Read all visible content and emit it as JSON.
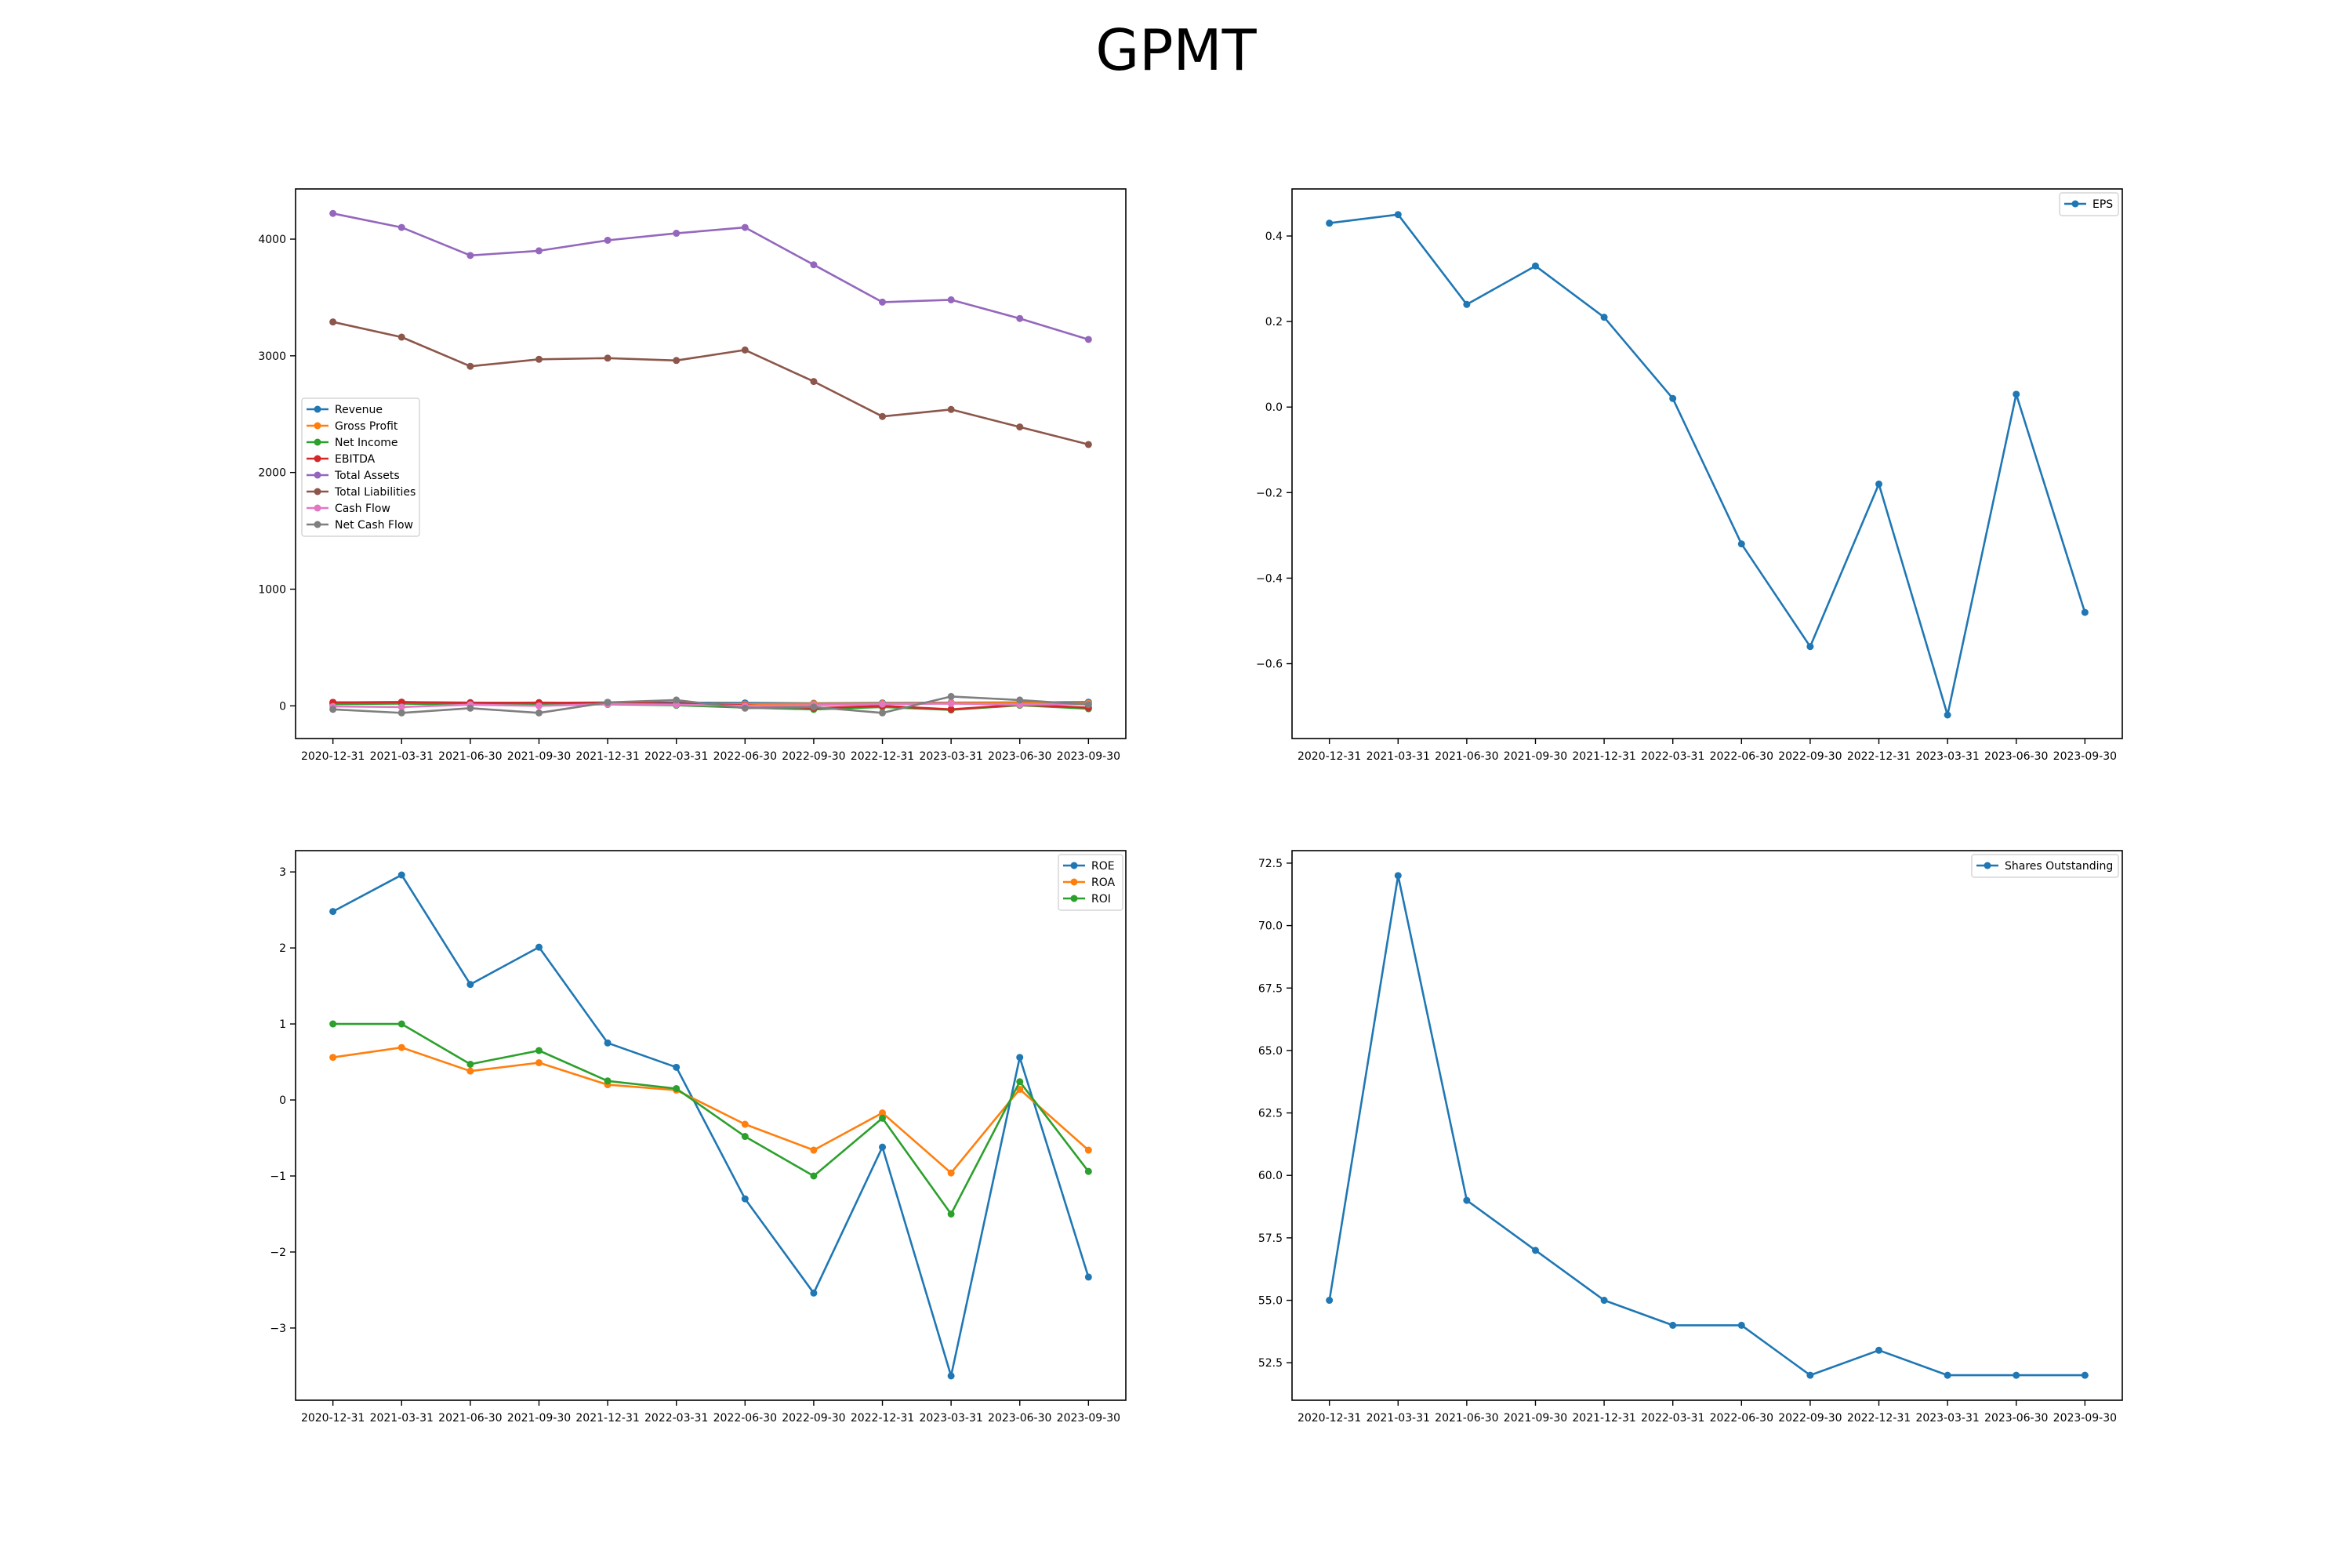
{
  "figure": {
    "title": "GPMT"
  },
  "chart_data": [
    {
      "type": "line",
      "title": "",
      "xlabel": "",
      "ylabel": "",
      "categories": [
        "2020-12-31",
        "2021-03-31",
        "2021-06-30",
        "2021-09-30",
        "2021-12-31",
        "2022-03-31",
        "2022-06-30",
        "2022-09-30",
        "2022-12-31",
        "2023-03-31",
        "2023-06-30",
        "2023-09-30"
      ],
      "ylim": [
        -280,
        4430
      ],
      "yticks": [
        0,
        1000,
        2000,
        3000,
        4000
      ],
      "ytick_labels": [
        "0",
        "1000",
        "2000",
        "3000",
        "4000"
      ],
      "grid": false,
      "legend_position": "center-left",
      "series": [
        {
          "name": "Revenue",
          "color": "#1f77b4",
          "values": [
            30,
            32,
            28,
            25,
            30,
            28,
            25,
            22,
            25,
            28,
            30,
            32
          ]
        },
        {
          "name": "Gross Profit",
          "color": "#ff7f0e",
          "values": [
            25,
            28,
            22,
            20,
            25,
            20,
            15,
            18,
            20,
            25,
            25,
            22
          ]
        },
        {
          "name": "Net Income",
          "color": "#2ca02c",
          "values": [
            15,
            20,
            10,
            15,
            12,
            5,
            -15,
            -30,
            -10,
            -35,
            5,
            -25
          ]
        },
        {
          "name": "EBITDA",
          "color": "#d62728",
          "values": [
            30,
            32,
            25,
            28,
            25,
            20,
            5,
            -20,
            0,
            -30,
            10,
            -15
          ]
        },
        {
          "name": "Total Assets",
          "color": "#9467bd",
          "values": [
            4220,
            4100,
            3860,
            3900,
            3990,
            4050,
            4100,
            3780,
            3460,
            3480,
            3320,
            3140
          ]
        },
        {
          "name": "Total Liabilities",
          "color": "#8c564b",
          "values": [
            3290,
            3160,
            2910,
            2970,
            2980,
            2960,
            3050,
            2780,
            2480,
            2540,
            2390,
            2240
          ]
        },
        {
          "name": "Cash Flow",
          "color": "#e377c2",
          "values": [
            -5,
            -10,
            10,
            0,
            15,
            10,
            0,
            5,
            15,
            20,
            10,
            15
          ]
        },
        {
          "name": "Net Cash Flow",
          "color": "#7f7f7f",
          "values": [
            -30,
            -60,
            -20,
            -60,
            30,
            50,
            -20,
            -10,
            -60,
            80,
            50,
            10
          ]
        }
      ]
    },
    {
      "type": "line",
      "title": "",
      "xlabel": "",
      "ylabel": "",
      "categories": [
        "2020-12-31",
        "2021-03-31",
        "2021-06-30",
        "2021-09-30",
        "2021-12-31",
        "2022-03-31",
        "2022-06-30",
        "2022-09-30",
        "2022-12-31",
        "2023-03-31",
        "2023-06-30",
        "2023-09-30"
      ],
      "ylim": [
        -0.775,
        0.51
      ],
      "yticks": [
        -0.6,
        -0.4,
        -0.2,
        0.0,
        0.2,
        0.4
      ],
      "ytick_labels": [
        "−0.6",
        "−0.4",
        "−0.2",
        "0.0",
        "0.2",
        "0.4"
      ],
      "grid": false,
      "legend_position": "top-right",
      "series": [
        {
          "name": "EPS",
          "color": "#1f77b4",
          "values": [
            0.43,
            0.45,
            0.24,
            0.33,
            0.21,
            0.02,
            -0.32,
            -0.56,
            -0.18,
            -0.72,
            0.03,
            -0.48
          ]
        }
      ]
    },
    {
      "type": "line",
      "title": "",
      "xlabel": "",
      "ylabel": "",
      "categories": [
        "2020-12-31",
        "2021-03-31",
        "2021-06-30",
        "2021-09-30",
        "2021-12-31",
        "2022-03-31",
        "2022-06-30",
        "2022-09-30",
        "2022-12-31",
        "2023-03-31",
        "2023-06-30",
        "2023-09-30"
      ],
      "ylim": [
        -3.95,
        3.28
      ],
      "yticks": [
        -3,
        -2,
        -1,
        0,
        1,
        2,
        3
      ],
      "ytick_labels": [
        "−3",
        "−2",
        "−1",
        "0",
        "1",
        "2",
        "3"
      ],
      "grid": false,
      "legend_position": "top-right",
      "series": [
        {
          "name": "ROE",
          "color": "#1f77b4",
          "values": [
            2.48,
            2.96,
            1.52,
            2.01,
            0.75,
            0.43,
            -1.3,
            -2.54,
            -0.62,
            -3.63,
            0.56,
            -2.33
          ]
        },
        {
          "name": "ROA",
          "color": "#ff7f0e",
          "values": [
            0.56,
            0.69,
            0.38,
            0.49,
            0.2,
            0.13,
            -0.32,
            -0.66,
            -0.17,
            -0.96,
            0.14,
            -0.66
          ]
        },
        {
          "name": "ROI",
          "color": "#2ca02c",
          "values": [
            1.0,
            1.0,
            0.47,
            0.65,
            0.25,
            0.15,
            -0.48,
            -1.0,
            -0.24,
            -1.5,
            0.24,
            -0.94
          ]
        }
      ]
    },
    {
      "type": "line",
      "title": "",
      "xlabel": "",
      "ylabel": "",
      "categories": [
        "2020-12-31",
        "2021-03-31",
        "2021-06-30",
        "2021-09-30",
        "2021-12-31",
        "2022-03-31",
        "2022-06-30",
        "2022-09-30",
        "2022-12-31",
        "2023-03-31",
        "2023-06-30",
        "2023-09-30"
      ],
      "ylim": [
        51.0,
        73.0
      ],
      "yticks": [
        52.5,
        55.0,
        57.5,
        60.0,
        62.5,
        65.0,
        67.5,
        70.0,
        72.5
      ],
      "ytick_labels": [
        "52.5",
        "55.0",
        "57.5",
        "60.0",
        "62.5",
        "65.0",
        "67.5",
        "70.0",
        "72.5"
      ],
      "grid": false,
      "legend_position": "top-right",
      "series": [
        {
          "name": "Shares Outstanding",
          "color": "#1f77b4",
          "values": [
            55,
            72,
            59,
            57,
            55,
            54,
            54,
            52,
            53,
            52,
            52,
            52
          ]
        }
      ]
    }
  ]
}
